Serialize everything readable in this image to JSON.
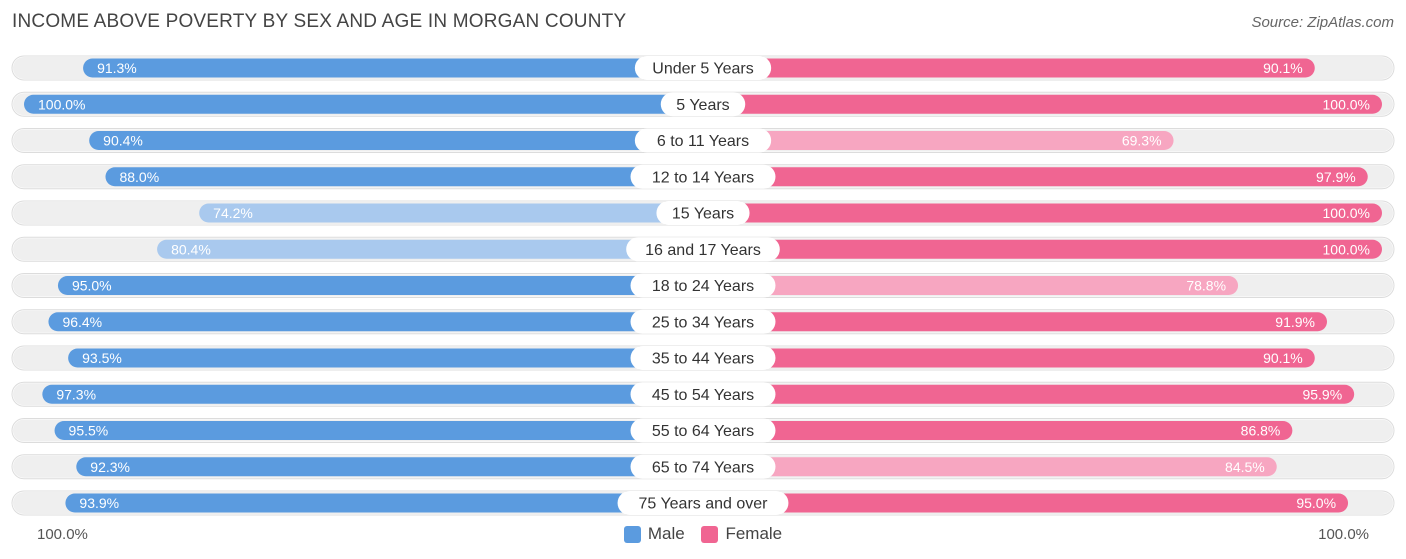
{
  "title": "INCOME ABOVE POVERTY BY SEX AND AGE IN MORGAN COUNTY",
  "source": "Source: ZipAtlas.com",
  "axis": {
    "left_label": "100.0%",
    "right_label": "100.0%"
  },
  "legend": {
    "male_label": "Male",
    "female_label": "Female"
  },
  "colors": {
    "male_strong": "#5b9bdf",
    "male_light": "#a9c9ee",
    "female_strong": "#f06592",
    "female_light": "#f7a6c1",
    "track": "#efefef"
  },
  "chart_data": {
    "type": "bar",
    "orientation": "horizontal-diverging",
    "title": "INCOME ABOVE POVERTY BY SEX AND AGE IN MORGAN COUNTY",
    "xlim": [
      0,
      100
    ],
    "unit": "%",
    "categories": [
      "Under 5 Years",
      "5 Years",
      "6 to 11 Years",
      "12 to 14 Years",
      "15 Years",
      "16 and 17 Years",
      "18 to 24 Years",
      "25 to 34 Years",
      "35 to 44 Years",
      "45 to 54 Years",
      "55 to 64 Years",
      "65 to 74 Years",
      "75 Years and over"
    ],
    "series": [
      {
        "name": "Male",
        "values": [
          91.3,
          100.0,
          90.4,
          88.0,
          74.2,
          80.4,
          95.0,
          96.4,
          93.5,
          97.3,
          95.5,
          92.3,
          93.9
        ],
        "labels": [
          "91.3%",
          "100.0%",
          "90.4%",
          "88.0%",
          "74.2%",
          "80.4%",
          "95.0%",
          "96.4%",
          "93.5%",
          "97.3%",
          "95.5%",
          "92.3%",
          "93.9%"
        ]
      },
      {
        "name": "Female",
        "values": [
          90.1,
          100.0,
          69.3,
          97.9,
          100.0,
          100.0,
          78.8,
          91.9,
          90.1,
          95.9,
          86.8,
          84.5,
          95.0
        ],
        "labels": [
          "90.1%",
          "100.0%",
          "69.3%",
          "97.9%",
          "100.0%",
          "100.0%",
          "78.8%",
          "91.9%",
          "90.1%",
          "95.9%",
          "86.8%",
          "84.5%",
          "95.0%"
        ]
      }
    ]
  }
}
